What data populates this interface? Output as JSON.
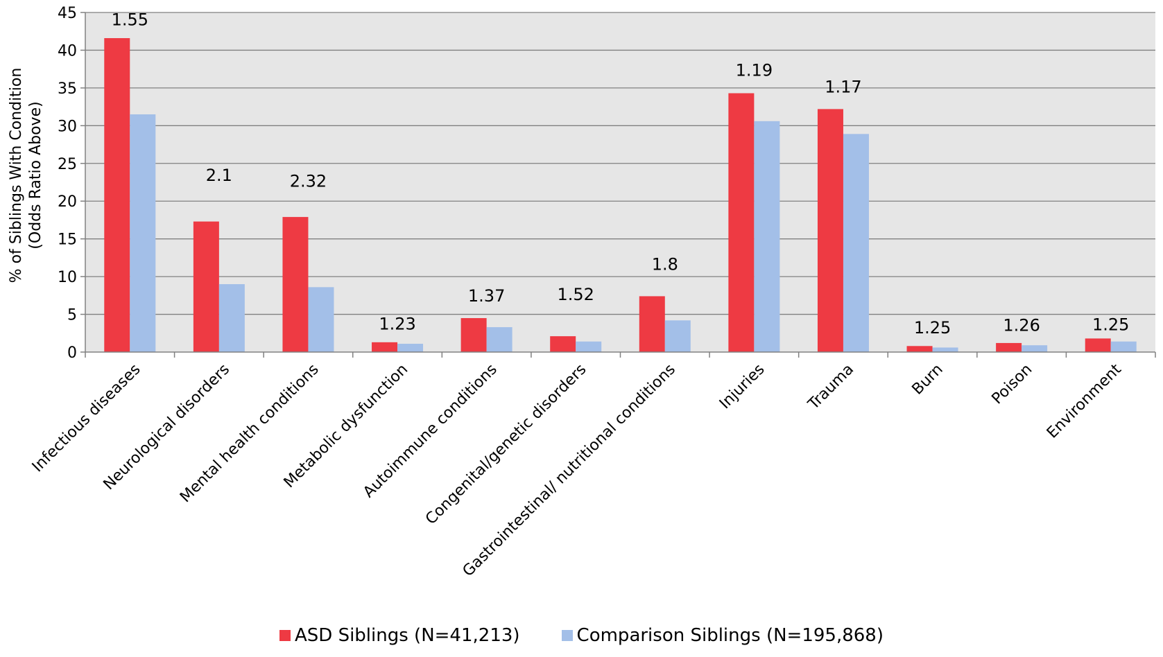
{
  "chart_data": {
    "type": "bar",
    "title": "",
    "xlabel": "",
    "ylabel": "% of Siblings With Condition",
    "ylabel_line2": "(Odds Ratio Above)",
    "ylim": [
      0,
      45
    ],
    "yticks": [
      0,
      5,
      10,
      15,
      20,
      25,
      30,
      35,
      40,
      45
    ],
    "ytick_labels": [
      "0",
      "5",
      "10",
      "15",
      "20",
      "25",
      "30",
      "35",
      "40",
      "45"
    ],
    "grid": true,
    "legend_position": "bottom",
    "categories": [
      "Infectious diseases",
      "Neurological disorders",
      "Mental health conditions",
      "Metabolic dysfunction",
      "Autoimmune conditions",
      "Congenital/genetic disorders",
      "Gastrointestinal/ nutritional conditions",
      "Injuries",
      "Trauma",
      "Burn",
      "Poison",
      "Environment"
    ],
    "series": [
      {
        "name": "ASD Siblings (N=41,213)",
        "color": "#ee3a43",
        "values": [
          41.6,
          17.3,
          17.9,
          1.3,
          4.5,
          2.1,
          7.4,
          34.3,
          32.2,
          0.8,
          1.2,
          1.8
        ]
      },
      {
        "name": "Comparison Siblings (N=195,868)",
        "color": "#a3bfe8",
        "values": [
          31.5,
          9.0,
          8.6,
          1.1,
          3.3,
          1.4,
          4.2,
          30.6,
          28.9,
          0.6,
          0.9,
          1.4
        ]
      }
    ],
    "annotations": [
      "1.55",
      "2.1",
      "2.32",
      "1.23",
      "1.37",
      "1.52",
      "1.8",
      "1.19",
      "1.17",
      "1.25",
      "1.26",
      "1.25"
    ],
    "annotation_values": [
      43.3,
      22.7,
      21.9,
      3.0,
      6.7,
      6.9,
      10.9,
      36.6,
      34.4,
      2.5,
      2.8,
      2.9
    ],
    "plot_background": "#e6e6e6",
    "grid_color": "#808080"
  }
}
